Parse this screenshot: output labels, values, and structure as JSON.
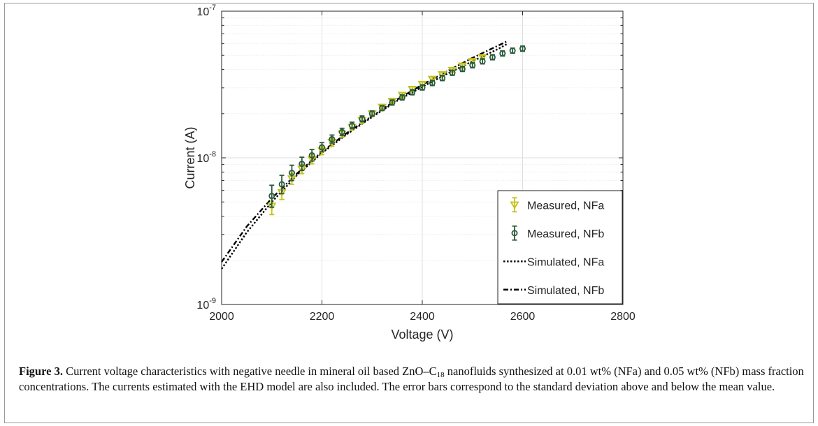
{
  "chart_data": {
    "type": "scatter",
    "xlabel": "Voltage (V)",
    "ylabel": "Current (A)",
    "xlim": [
      2000,
      2800
    ],
    "ylim": [
      1e-09,
      1e-07
    ],
    "yscale": "log",
    "x_ticks": [
      "2000",
      "2200",
      "2400",
      "2600",
      "2800"
    ],
    "y_ticks": [
      {
        "value": 1e-09,
        "base": "10",
        "exp": "-9"
      },
      {
        "value": 1e-08,
        "base": "10",
        "exp": "-8"
      },
      {
        "value": 1e-07,
        "base": "10",
        "exp": "-7"
      }
    ],
    "grid": true,
    "legend_position": "bottom-right",
    "series": [
      {
        "name": "Measured, NFa",
        "kind": "errorbar",
        "marker": "triangle-down",
        "color": "#c4c21a",
        "x": [
          2100,
          2120,
          2140,
          2160,
          2180,
          2200,
          2220,
          2240,
          2260,
          2280,
          2300,
          2320,
          2340,
          2360,
          2380,
          2400,
          2420,
          2440,
          2460,
          2480,
          2500,
          2520
        ],
        "y": [
          4.7e-09,
          5.8e-09,
          7.2e-09,
          8.4e-09,
          9.8e-09,
          1.12e-08,
          1.28e-08,
          1.46e-08,
          1.62e-08,
          1.8e-08,
          2e-08,
          2.22e-08,
          2.44e-08,
          2.68e-08,
          2.94e-08,
          3.18e-08,
          3.44e-08,
          3.7e-08,
          3.96e-08,
          4.24e-08,
          4.55e-08,
          4.85e-08
        ],
        "err_lo": [
          4.1e-09,
          5.2e-09,
          6.6e-09,
          7.8e-09,
          9.1e-09,
          1.05e-08,
          1.2e-08,
          1.38e-08,
          1.54e-08,
          1.72e-08,
          1.92e-08,
          2.13e-08,
          2.35e-08,
          2.58e-08,
          2.83e-08,
          3.07e-08,
          3.32e-08,
          3.58e-08,
          3.83e-08,
          4.1e-08,
          4.4e-08,
          4.69e-08
        ],
        "err_hi": [
          5.3e-09,
          6.4e-09,
          7.8e-09,
          9e-09,
          1.05e-08,
          1.2e-08,
          1.36e-08,
          1.54e-08,
          1.7e-08,
          1.88e-08,
          2.08e-08,
          2.31e-08,
          2.53e-08,
          2.78e-08,
          3.05e-08,
          3.29e-08,
          3.56e-08,
          3.82e-08,
          4.09e-08,
          4.38e-08,
          4.7e-08,
          5.01e-08
        ]
      },
      {
        "name": "Measured, NFb",
        "kind": "errorbar",
        "marker": "circle",
        "color": "#2a5c3b",
        "x": [
          2100,
          2120,
          2140,
          2160,
          2180,
          2200,
          2220,
          2240,
          2260,
          2280,
          2300,
          2320,
          2340,
          2360,
          2380,
          2400,
          2420,
          2440,
          2460,
          2480,
          2500,
          2520,
          2540,
          2560,
          2580,
          2600
        ],
        "y": [
          5.5e-09,
          6.6e-09,
          7.9e-09,
          9.1e-09,
          1.04e-08,
          1.18e-08,
          1.34e-08,
          1.5e-08,
          1.66e-08,
          1.84e-08,
          2e-08,
          2.18e-08,
          2.38e-08,
          2.58e-08,
          2.8e-08,
          3.02e-08,
          3.24e-08,
          3.5e-08,
          3.8e-08,
          4.04e-08,
          4.28e-08,
          4.55e-08,
          4.85e-08,
          5.15e-08,
          5.38e-08,
          5.55e-08
        ],
        "err_lo": [
          4.6e-09,
          5.7e-09,
          7e-09,
          8.2e-09,
          9.5e-09,
          1.1e-08,
          1.26e-08,
          1.42e-08,
          1.58e-08,
          1.76e-08,
          1.92e-08,
          2.1e-08,
          2.29e-08,
          2.48e-08,
          2.69e-08,
          2.9e-08,
          3.11e-08,
          3.36e-08,
          3.65e-08,
          3.88e-08,
          4.11e-08,
          4.37e-08,
          4.66e-08,
          4.95e-08,
          5.17e-08,
          5.33e-08
        ],
        "err_hi": [
          6.5e-09,
          7.6e-09,
          8.9e-09,
          1.01e-08,
          1.14e-08,
          1.27e-08,
          1.43e-08,
          1.59e-08,
          1.75e-08,
          1.93e-08,
          2.09e-08,
          2.27e-08,
          2.48e-08,
          2.69e-08,
          2.92e-08,
          3.15e-08,
          3.38e-08,
          3.65e-08,
          3.96e-08,
          4.21e-08,
          4.46e-08,
          4.74e-08,
          5.05e-08,
          5.36e-08,
          5.6e-08,
          5.78e-08
        ]
      },
      {
        "name": "Simulated, NFa",
        "kind": "line",
        "style": "dotted",
        "color": "#000000",
        "x": [
          2000,
          2050,
          2100,
          2150,
          2200,
          2250,
          2300,
          2350,
          2400,
          2450,
          2500,
          2550,
          2570
        ],
        "y": [
          1.75e-09,
          3.1e-09,
          5e-09,
          7.6e-09,
          1.08e-08,
          1.45e-08,
          1.9e-08,
          2.45e-08,
          3.05e-08,
          3.75e-08,
          4.55e-08,
          5.5e-08,
          6e-08
        ]
      },
      {
        "name": "Simulated, NFb",
        "kind": "line",
        "style": "dashdot",
        "color": "#000000",
        "x": [
          2000,
          2050,
          2100,
          2150,
          2200,
          2250,
          2300,
          2350,
          2400,
          2450,
          2500,
          2550,
          2570
        ],
        "y": [
          1.95e-09,
          3.4e-09,
          5.3e-09,
          7.8e-09,
          1.1e-08,
          1.48e-08,
          1.93e-08,
          2.5e-08,
          3.15e-08,
          3.9e-08,
          4.8e-08,
          5.8e-08,
          6.25e-08
        ]
      }
    ]
  },
  "caption": {
    "label": "Figure 3.",
    "text_before_formula": " Current voltage characteristics with negative needle in mineral oil based ZnO–C",
    "formula_subscript": "18",
    "text_after_formula": " nanofluids synthesized at 0.01 wt% (NFa) and 0.05 wt% (NFb) mass fraction concentrations. The currents estimated with the EHD model are also included. The error bars correspond to the standard deviation above and below the mean value."
  }
}
